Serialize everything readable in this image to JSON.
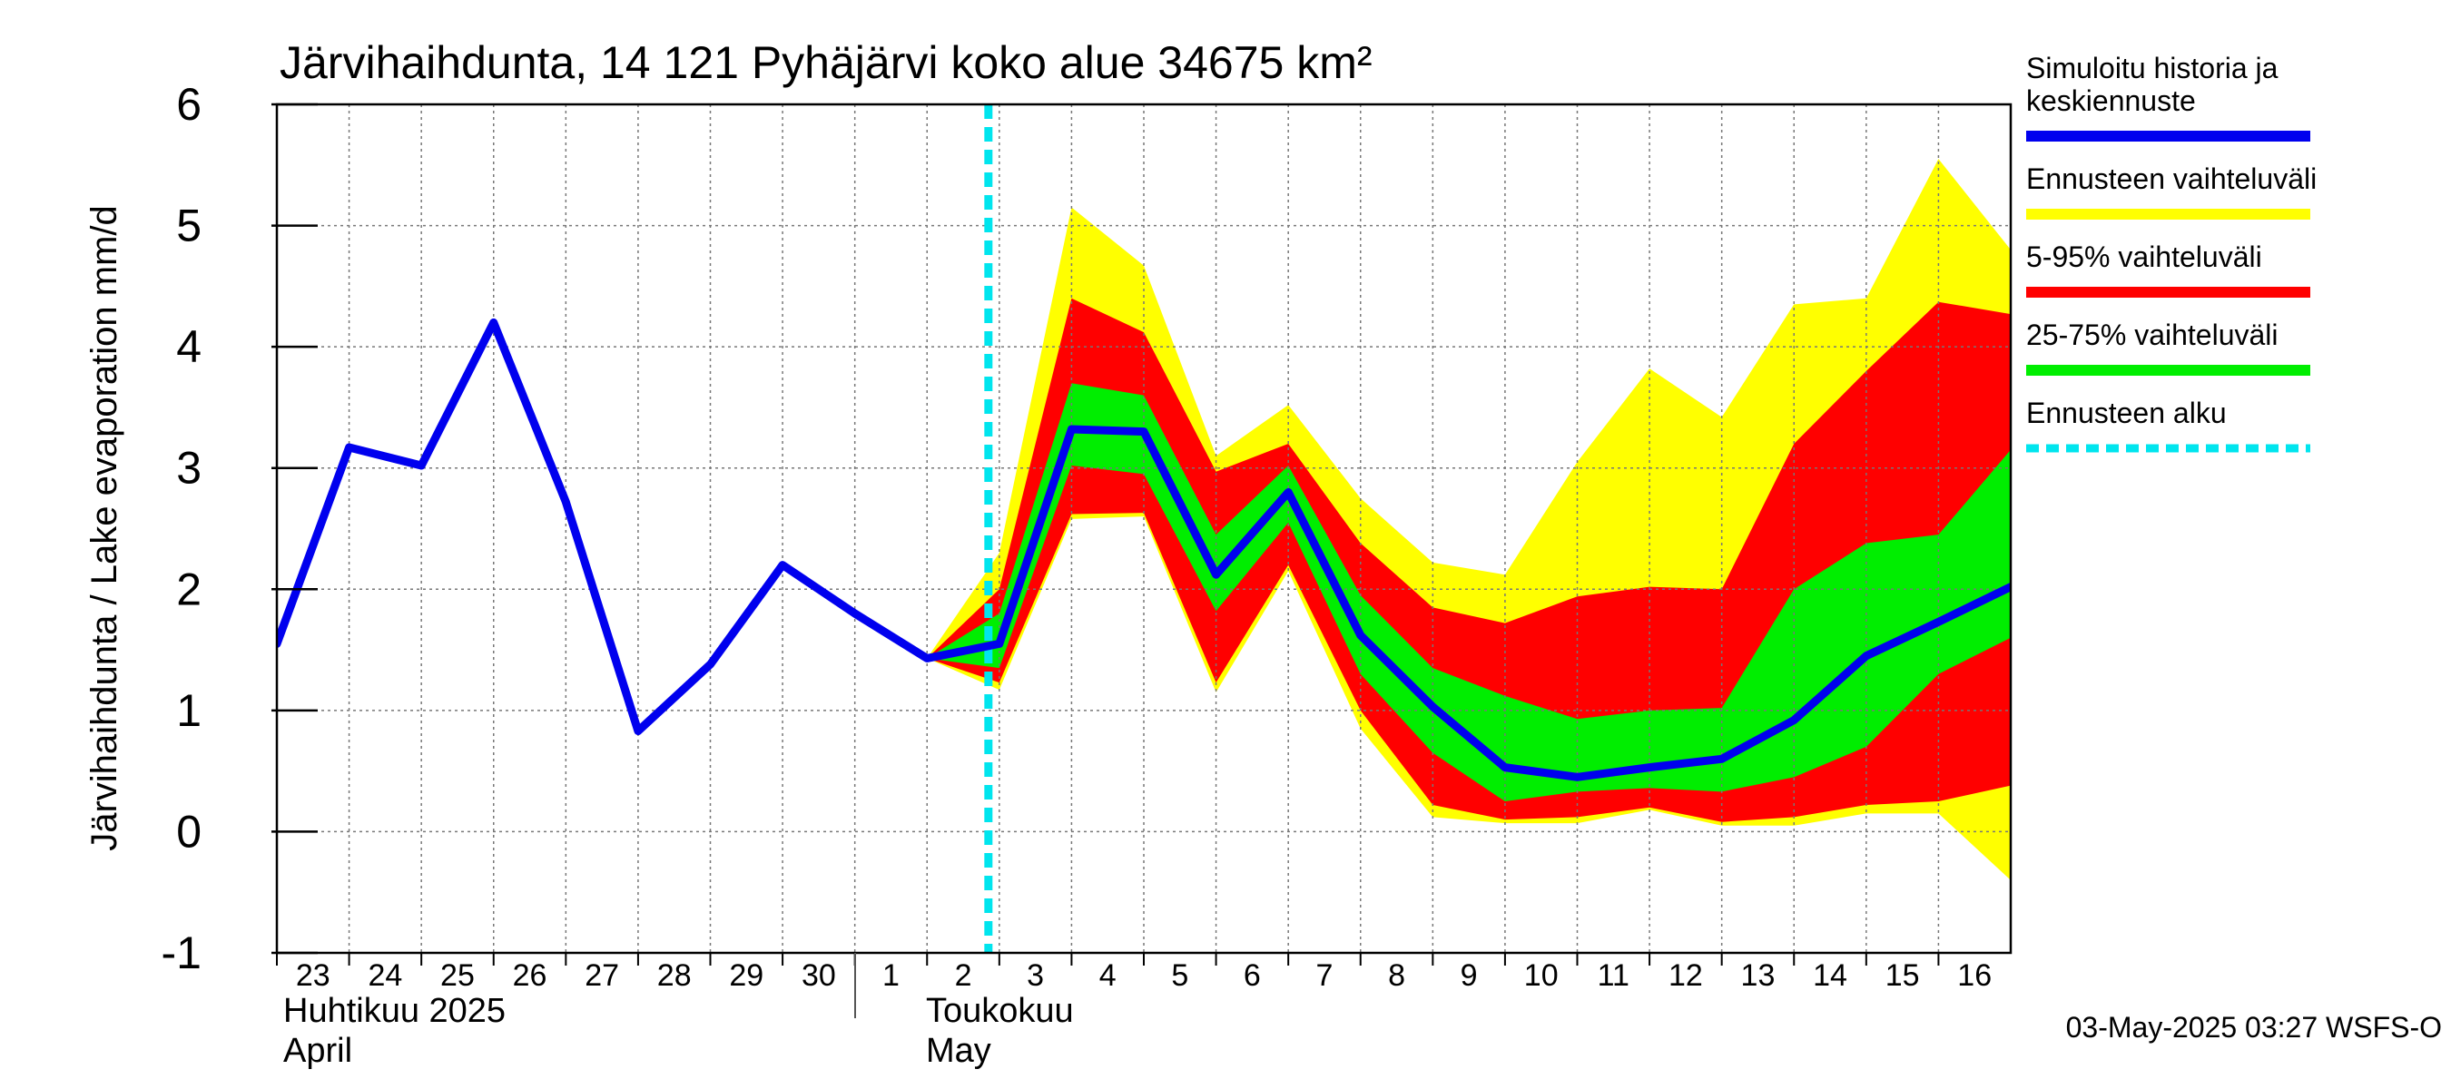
{
  "chart_data": {
    "type": "area",
    "title": "Järvihaihdunta, 14 121 Pyhäjärvi koko alue 34675 km²",
    "ylabel": "Järvihaihdunta / Lake evaporation   mm/d",
    "ylim": [
      -1,
      6
    ],
    "yticks": [
      -1,
      0,
      1,
      2,
      3,
      4,
      5,
      6
    ],
    "grid": true,
    "legend_position": "right",
    "x_tick_labels": [
      "23",
      "24",
      "25",
      "26",
      "27",
      "28",
      "29",
      "30",
      "1",
      "2",
      "3",
      "4",
      "5",
      "6",
      "7",
      "8",
      "9",
      "10",
      "11",
      "12",
      "13",
      "14",
      "15",
      "16"
    ],
    "month_labels": [
      {
        "fi": "Huhtikuu  2025",
        "en": "April"
      },
      {
        "fi": "Toukokuu",
        "en": "May"
      }
    ],
    "forecast_start": "3",
    "series": [
      {
        "name": "Simuloitu historia ja keskiennuste",
        "color": "#0000ee",
        "x": [
          "23",
          "24",
          "25",
          "26",
          "27",
          "28",
          "29",
          "30",
          "1",
          "2",
          "3",
          "4",
          "5",
          "6",
          "7",
          "8",
          "9",
          "10",
          "11",
          "12",
          "13",
          "14",
          "15",
          "16",
          "17"
        ],
        "values": [
          1.55,
          3.17,
          3.02,
          4.2,
          2.72,
          0.83,
          1.38,
          2.2,
          1.8,
          1.43,
          1.55,
          3.32,
          3.3,
          2.12,
          2.8,
          1.62,
          1.03,
          0.53,
          0.45,
          0.53,
          0.6,
          0.92,
          1.45,
          1.73,
          2.02
        ]
      }
    ],
    "bands": [
      {
        "name": "Ennusteen vaihteluväli",
        "color": "#ffff00",
        "x": [
          "2",
          "3",
          "4",
          "5",
          "6",
          "7",
          "8",
          "9",
          "10",
          "11",
          "12",
          "13",
          "14",
          "15",
          "16",
          "17"
        ],
        "upper": [
          1.43,
          2.3,
          5.15,
          4.67,
          3.1,
          3.52,
          2.75,
          2.22,
          2.12,
          3.05,
          3.82,
          3.42,
          4.35,
          4.4,
          5.55,
          4.8
        ],
        "lower": [
          1.43,
          1.17,
          2.58,
          2.6,
          1.15,
          2.15,
          0.85,
          0.12,
          0.07,
          0.07,
          0.18,
          0.05,
          0.05,
          0.15,
          0.15,
          -0.4
        ]
      },
      {
        "name": "5-95% vaihteluväli",
        "color": "#ff0000",
        "x": [
          "2",
          "3",
          "4",
          "5",
          "6",
          "7",
          "8",
          "9",
          "10",
          "11",
          "12",
          "13",
          "14",
          "15",
          "16",
          "17"
        ],
        "upper": [
          1.43,
          2.0,
          4.4,
          4.12,
          2.97,
          3.2,
          2.38,
          1.85,
          1.72,
          1.94,
          2.02,
          2.0,
          3.2,
          3.8,
          4.37,
          4.27
        ],
        "lower": [
          1.43,
          1.23,
          2.62,
          2.63,
          1.23,
          2.2,
          1.0,
          0.22,
          0.1,
          0.12,
          0.2,
          0.08,
          0.12,
          0.22,
          0.25,
          0.38
        ]
      },
      {
        "name": "25-75% vaihteluväli",
        "color": "#00ee00",
        "x": [
          "2",
          "3",
          "4",
          "5",
          "6",
          "7",
          "8",
          "9",
          "10",
          "11",
          "12",
          "13",
          "14",
          "15",
          "16",
          "17"
        ],
        "upper": [
          1.43,
          1.8,
          3.7,
          3.6,
          2.45,
          3.02,
          1.95,
          1.35,
          1.12,
          0.93,
          1.0,
          1.02,
          2.0,
          2.38,
          2.45,
          3.15
        ],
        "lower": [
          1.43,
          1.35,
          3.02,
          2.95,
          1.82,
          2.55,
          1.3,
          0.65,
          0.25,
          0.33,
          0.36,
          0.33,
          0.45,
          0.7,
          1.3,
          1.6
        ]
      }
    ],
    "forecast_marker": {
      "name": "Ennusteen alku",
      "color": "#00e5ee"
    }
  },
  "footer": {
    "timestamp": "03-May-2025 03:27 WSFS-O"
  }
}
